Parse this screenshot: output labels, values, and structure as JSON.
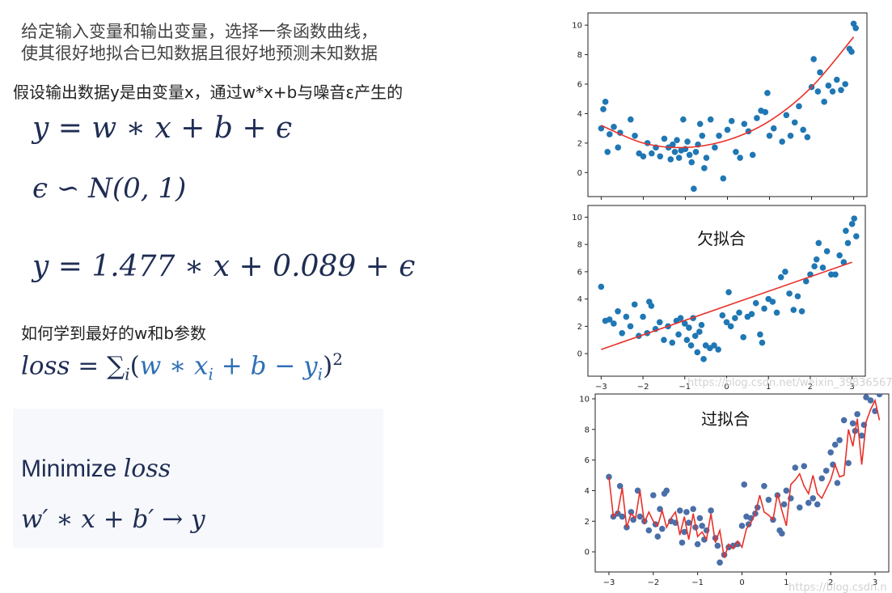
{
  "intro": {
    "line1": "给定输入变量和输出变量，选择一条函数曲线，",
    "line2": "使其很好地拟合已知数据且很好地预测未知数据"
  },
  "assumption": "假设输出数据y是由变量x，通过w*x+b与噪音ε产生的",
  "equations": {
    "model": "y = w ∗ x + b + ϵ",
    "noise": "ϵ ∽ N(0, 1)",
    "fitted": "y = 1.477 ∗ x + 0.089 + ϵ"
  },
  "learn_question": "如何学到最好的w和b参数",
  "loss": {
    "lhs": "loss = ",
    "sum": "∑",
    "sub": "i",
    "open": "(",
    "w": "w ∗ x",
    "xi_sub": "i",
    "mid": " + b − y",
    "yi_sub": "i",
    "close": ")",
    "sup": "2"
  },
  "minimize": {
    "word": "Minimize ",
    "loss": "loss"
  },
  "final": "w′ ∗ x + b′ → y",
  "watermark_1": "https://blog.csdn.net/weixin_39836567",
  "watermark_2": "https://blog.csdn.n",
  "colors": {
    "points": "#1f77b4",
    "fit": "#e8312a",
    "overfit_points": "#4a6fa8"
  },
  "chart_data": [
    {
      "type": "scatter",
      "title": "",
      "annotation": "",
      "xlim": [
        -3.2,
        3.2
      ],
      "ylim": [
        -1.3,
        10.5
      ],
      "y_ticks": [
        0,
        2,
        4,
        6,
        8,
        10
      ],
      "x_ticks": [],
      "fit": {
        "kind": "quadratic",
        "x": [
          -3.0,
          -2.0,
          -1.0,
          0.0,
          1.0,
          2.0,
          3.0
        ],
        "y": [
          3.2,
          2.0,
          1.7,
          2.2,
          3.5,
          5.8,
          9.2
        ]
      },
      "points": [
        [
          -3.0,
          3.0
        ],
        [
          -2.95,
          4.3
        ],
        [
          -2.9,
          4.8
        ],
        [
          -2.85,
          1.4
        ],
        [
          -2.8,
          2.6
        ],
        [
          -2.7,
          3.1
        ],
        [
          -2.6,
          1.7
        ],
        [
          -2.55,
          2.7
        ],
        [
          -2.3,
          3.6
        ],
        [
          -2.2,
          2.5
        ],
        [
          -2.1,
          1.3
        ],
        [
          -2.0,
          1.1
        ],
        [
          -1.9,
          2.0
        ],
        [
          -1.8,
          1.3
        ],
        [
          -1.7,
          1.7
        ],
        [
          -1.6,
          1.1
        ],
        [
          -1.5,
          2.3
        ],
        [
          -1.4,
          1.7
        ],
        [
          -1.35,
          0.9
        ],
        [
          -1.3,
          1.9
        ],
        [
          -1.25,
          1.4
        ],
        [
          -1.2,
          2.2
        ],
        [
          -1.15,
          1.0
        ],
        [
          -1.1,
          1.5
        ],
        [
          -1.05,
          3.6
        ],
        [
          -1.0,
          1.6
        ],
        [
          -0.95,
          2.1
        ],
        [
          -0.9,
          1.2
        ],
        [
          -0.85,
          0.7
        ],
        [
          -0.8,
          -1.1
        ],
        [
          -0.75,
          1.4
        ],
        [
          -0.7,
          1.9
        ],
        [
          -0.65,
          3.3
        ],
        [
          -0.6,
          2.5
        ],
        [
          -0.55,
          0.3
        ],
        [
          -0.5,
          1.0
        ],
        [
          -0.4,
          3.6
        ],
        [
          -0.3,
          1.7
        ],
        [
          -0.2,
          2.5
        ],
        [
          -0.1,
          -0.4
        ],
        [
          0.0,
          2.9
        ],
        [
          0.1,
          3.5
        ],
        [
          0.2,
          1.4
        ],
        [
          0.3,
          1.0
        ],
        [
          0.4,
          3.3
        ],
        [
          0.5,
          2.8
        ],
        [
          0.6,
          1.2
        ],
        [
          0.7,
          3.7
        ],
        [
          0.8,
          4.2
        ],
        [
          0.9,
          4.1
        ],
        [
          0.95,
          5.4
        ],
        [
          1.0,
          2.5
        ],
        [
          1.1,
          3.0
        ],
        [
          1.3,
          2.1
        ],
        [
          1.4,
          3.9
        ],
        [
          1.5,
          2.5
        ],
        [
          1.6,
          3.4
        ],
        [
          1.7,
          4.5
        ],
        [
          1.8,
          2.9
        ],
        [
          1.9,
          2.4
        ],
        [
          2.0,
          5.8
        ],
        [
          2.05,
          7.7
        ],
        [
          2.15,
          5.5
        ],
        [
          2.2,
          6.8
        ],
        [
          2.3,
          4.8
        ],
        [
          2.4,
          5.9
        ],
        [
          2.5,
          5.5
        ],
        [
          2.6,
          6.3
        ],
        [
          2.7,
          5.6
        ],
        [
          2.8,
          6.0
        ],
        [
          2.9,
          8.4
        ],
        [
          2.95,
          8.2
        ],
        [
          3.0,
          10.1
        ],
        [
          3.05,
          9.8
        ]
      ]
    },
    {
      "type": "scatter",
      "title": "",
      "annotation": "欠拟合",
      "xlim": [
        -3.2,
        3.2
      ],
      "ylim": [
        -1.3,
        10.5
      ],
      "y_ticks": [
        0,
        2,
        4,
        6,
        8,
        10
      ],
      "x_ticks": [
        -3,
        -2,
        -1,
        0,
        1,
        2,
        3
      ],
      "fit": {
        "kind": "linear",
        "x": [
          -3.0,
          3.0
        ],
        "y": [
          0.3,
          6.7
        ]
      },
      "points": [
        [
          -3.0,
          4.9
        ],
        [
          -2.9,
          2.4
        ],
        [
          -2.8,
          2.5
        ],
        [
          -2.7,
          2.2
        ],
        [
          -2.6,
          3.1
        ],
        [
          -2.5,
          1.5
        ],
        [
          -2.4,
          2.7
        ],
        [
          -2.3,
          2.0
        ],
        [
          -2.2,
          3.6
        ],
        [
          -2.1,
          1.3
        ],
        [
          -2.0,
          2.7
        ],
        [
          -1.9,
          1.5
        ],
        [
          -1.85,
          3.8
        ],
        [
          -1.8,
          3.5
        ],
        [
          -1.7,
          1.8
        ],
        [
          -1.6,
          2.3
        ],
        [
          -1.5,
          1.0
        ],
        [
          -1.4,
          2.0
        ],
        [
          -1.3,
          0.8
        ],
        [
          -1.2,
          2.4
        ],
        [
          -1.15,
          1.4
        ],
        [
          -1.1,
          2.6
        ],
        [
          -1.0,
          2.2
        ],
        [
          -0.95,
          1.0
        ],
        [
          -0.9,
          1.9
        ],
        [
          -0.85,
          0.6
        ],
        [
          -0.8,
          2.6
        ],
        [
          -0.75,
          1.3
        ],
        [
          -0.7,
          0.1
        ],
        [
          -0.65,
          1.6
        ],
        [
          -0.6,
          2.1
        ],
        [
          -0.55,
          -0.4
        ],
        [
          -0.5,
          0.6
        ],
        [
          -0.4,
          0.4
        ],
        [
          -0.3,
          0.6
        ],
        [
          -0.2,
          0.3
        ],
        [
          -0.1,
          2.8
        ],
        [
          0.0,
          2.3
        ],
        [
          0.05,
          4.5
        ],
        [
          0.1,
          2.0
        ],
        [
          0.2,
          2.6
        ],
        [
          0.3,
          3.0
        ],
        [
          0.4,
          1.2
        ],
        [
          0.5,
          2.7
        ],
        [
          0.6,
          2.9
        ],
        [
          0.7,
          3.7
        ],
        [
          0.8,
          1.4
        ],
        [
          0.85,
          0.8
        ],
        [
          0.9,
          3.3
        ],
        [
          1.0,
          4.0
        ],
        [
          1.1,
          3.8
        ],
        [
          1.2,
          3.0
        ],
        [
          1.3,
          5.6
        ],
        [
          1.4,
          6.0
        ],
        [
          1.5,
          4.4
        ],
        [
          1.6,
          3.2
        ],
        [
          1.7,
          4.2
        ],
        [
          1.8,
          3.1
        ],
        [
          1.9,
          5.3
        ],
        [
          2.0,
          5.8
        ],
        [
          2.1,
          6.4
        ],
        [
          2.15,
          6.9
        ],
        [
          2.2,
          8.1
        ],
        [
          2.3,
          6.3
        ],
        [
          2.4,
          7.5
        ],
        [
          2.5,
          5.8
        ],
        [
          2.6,
          5.8
        ],
        [
          2.7,
          7.2
        ],
        [
          2.8,
          6.7
        ],
        [
          2.85,
          9.0
        ],
        [
          2.9,
          8.1
        ],
        [
          3.0,
          9.5
        ],
        [
          3.05,
          9.9
        ],
        [
          3.1,
          8.6
        ]
      ]
    },
    {
      "type": "scatter",
      "title": "",
      "annotation": "过拟合",
      "xlim": [
        -3.2,
        3.2
      ],
      "ylim": [
        -1.0,
        10.0
      ],
      "y_ticks": [
        0,
        2,
        4,
        6,
        8,
        10
      ],
      "x_ticks": [
        -3,
        -2,
        -1,
        0,
        1,
        2,
        3
      ],
      "fit": {
        "kind": "interpolating",
        "x": [
          -3.0,
          -2.9,
          -2.8,
          -2.7,
          -2.6,
          -2.5,
          -2.4,
          -2.3,
          -2.2,
          -2.1,
          -2.0,
          -1.9,
          -1.8,
          -1.7,
          -1.6,
          -1.5,
          -1.4,
          -1.3,
          -1.2,
          -1.1,
          -1.0,
          -0.9,
          -0.8,
          -0.7,
          -0.6,
          -0.5,
          -0.4,
          -0.3,
          -0.2,
          -0.1,
          0.0,
          0.1,
          0.2,
          0.3,
          0.4,
          0.5,
          0.6,
          0.7,
          0.8,
          0.9,
          1.0,
          1.1,
          1.2,
          1.3,
          1.4,
          1.5,
          1.6,
          1.7,
          1.8,
          1.9,
          2.0,
          2.1,
          2.2,
          2.3,
          2.4,
          2.5,
          2.6,
          2.7,
          2.8,
          2.9,
          3.0,
          3.1
        ],
        "y": [
          4.9,
          2.3,
          2.6,
          4.2,
          1.6,
          2.5,
          2.2,
          4.0,
          1.9,
          2.6,
          2.0,
          1.7,
          2.7,
          1.6,
          2.2,
          2.6,
          1.1,
          2.3,
          0.8,
          2.5,
          1.0,
          1.3,
          0.8,
          2.5,
          0.6,
          1.4,
          -0.4,
          0.5,
          0.2,
          0.7,
          0.3,
          1.5,
          1.9,
          2.5,
          3.7,
          2.6,
          2.4,
          2.1,
          3.8,
          2.7,
          1.7,
          4.4,
          4.7,
          5.1,
          4.3,
          3.8,
          5.0,
          3.8,
          3.5,
          4.1,
          4.7,
          5.7,
          4.9,
          5.0,
          8.0,
          6.9,
          8.7,
          5.7,
          8.5,
          9.3,
          9.9,
          8.6
        ]
      },
      "points": [
        [
          -3.0,
          4.9
        ],
        [
          -2.9,
          2.3
        ],
        [
          -2.8,
          2.5
        ],
        [
          -2.75,
          4.3
        ],
        [
          -2.7,
          2.3
        ],
        [
          -2.6,
          1.6
        ],
        [
          -2.5,
          2.6
        ],
        [
          -2.45,
          2.1
        ],
        [
          -2.35,
          4.0
        ],
        [
          -2.3,
          2.3
        ],
        [
          -2.2,
          2.0
        ],
        [
          -2.1,
          1.4
        ],
        [
          -2.0,
          3.7
        ],
        [
          -1.95,
          1.8
        ],
        [
          -1.9,
          1.0
        ],
        [
          -1.85,
          2.8
        ],
        [
          -1.8,
          1.5
        ],
        [
          -1.75,
          3.8
        ],
        [
          -1.7,
          4.0
        ],
        [
          -1.6,
          2.0
        ],
        [
          -1.5,
          1.9
        ],
        [
          -1.4,
          2.7
        ],
        [
          -1.35,
          0.6
        ],
        [
          -1.3,
          1.3
        ],
        [
          -1.25,
          2.6
        ],
        [
          -1.2,
          1.9
        ],
        [
          -1.1,
          2.8
        ],
        [
          -1.05,
          1.6
        ],
        [
          -1.0,
          0.5
        ],
        [
          -0.95,
          2.2
        ],
        [
          -0.9,
          1.7
        ],
        [
          -0.85,
          0.8
        ],
        [
          -0.8,
          1.4
        ],
        [
          -0.7,
          2.7
        ],
        [
          -0.6,
          0.9
        ],
        [
          -0.55,
          0.4
        ],
        [
          -0.5,
          -0.7
        ],
        [
          -0.4,
          -0.2
        ],
        [
          -0.3,
          0.3
        ],
        [
          -0.2,
          0.4
        ],
        [
          -0.1,
          0.5
        ],
        [
          0.0,
          1.7
        ],
        [
          0.05,
          4.4
        ],
        [
          0.1,
          2.3
        ],
        [
          0.15,
          1.8
        ],
        [
          0.2,
          2.2
        ],
        [
          0.3,
          2.5
        ],
        [
          0.35,
          2.9
        ],
        [
          0.5,
          4.3
        ],
        [
          0.6,
          3.4
        ],
        [
          0.7,
          2.1
        ],
        [
          0.8,
          3.7
        ],
        [
          0.85,
          1.4
        ],
        [
          0.9,
          1.2
        ],
        [
          0.95,
          3.1
        ],
        [
          1.0,
          4.0
        ],
        [
          1.1,
          3.5
        ],
        [
          1.2,
          5.5
        ],
        [
          1.3,
          2.9
        ],
        [
          1.4,
          5.6
        ],
        [
          1.5,
          3.2
        ],
        [
          1.6,
          3.5
        ],
        [
          1.7,
          3.1
        ],
        [
          1.8,
          4.8
        ],
        [
          1.9,
          5.3
        ],
        [
          2.0,
          6.5
        ],
        [
          2.05,
          5.7
        ],
        [
          2.1,
          7.0
        ],
        [
          2.15,
          4.5
        ],
        [
          2.2,
          7.3
        ],
        [
          2.3,
          8.6
        ],
        [
          2.4,
          5.8
        ],
        [
          2.5,
          8.4
        ],
        [
          2.55,
          7.9
        ],
        [
          2.6,
          9.0
        ],
        [
          2.7,
          7.6
        ],
        [
          2.75,
          8.3
        ],
        [
          2.8,
          10.1
        ],
        [
          2.9,
          9.9
        ],
        [
          3.0,
          9.2
        ],
        [
          3.1,
          10.3
        ]
      ]
    }
  ]
}
